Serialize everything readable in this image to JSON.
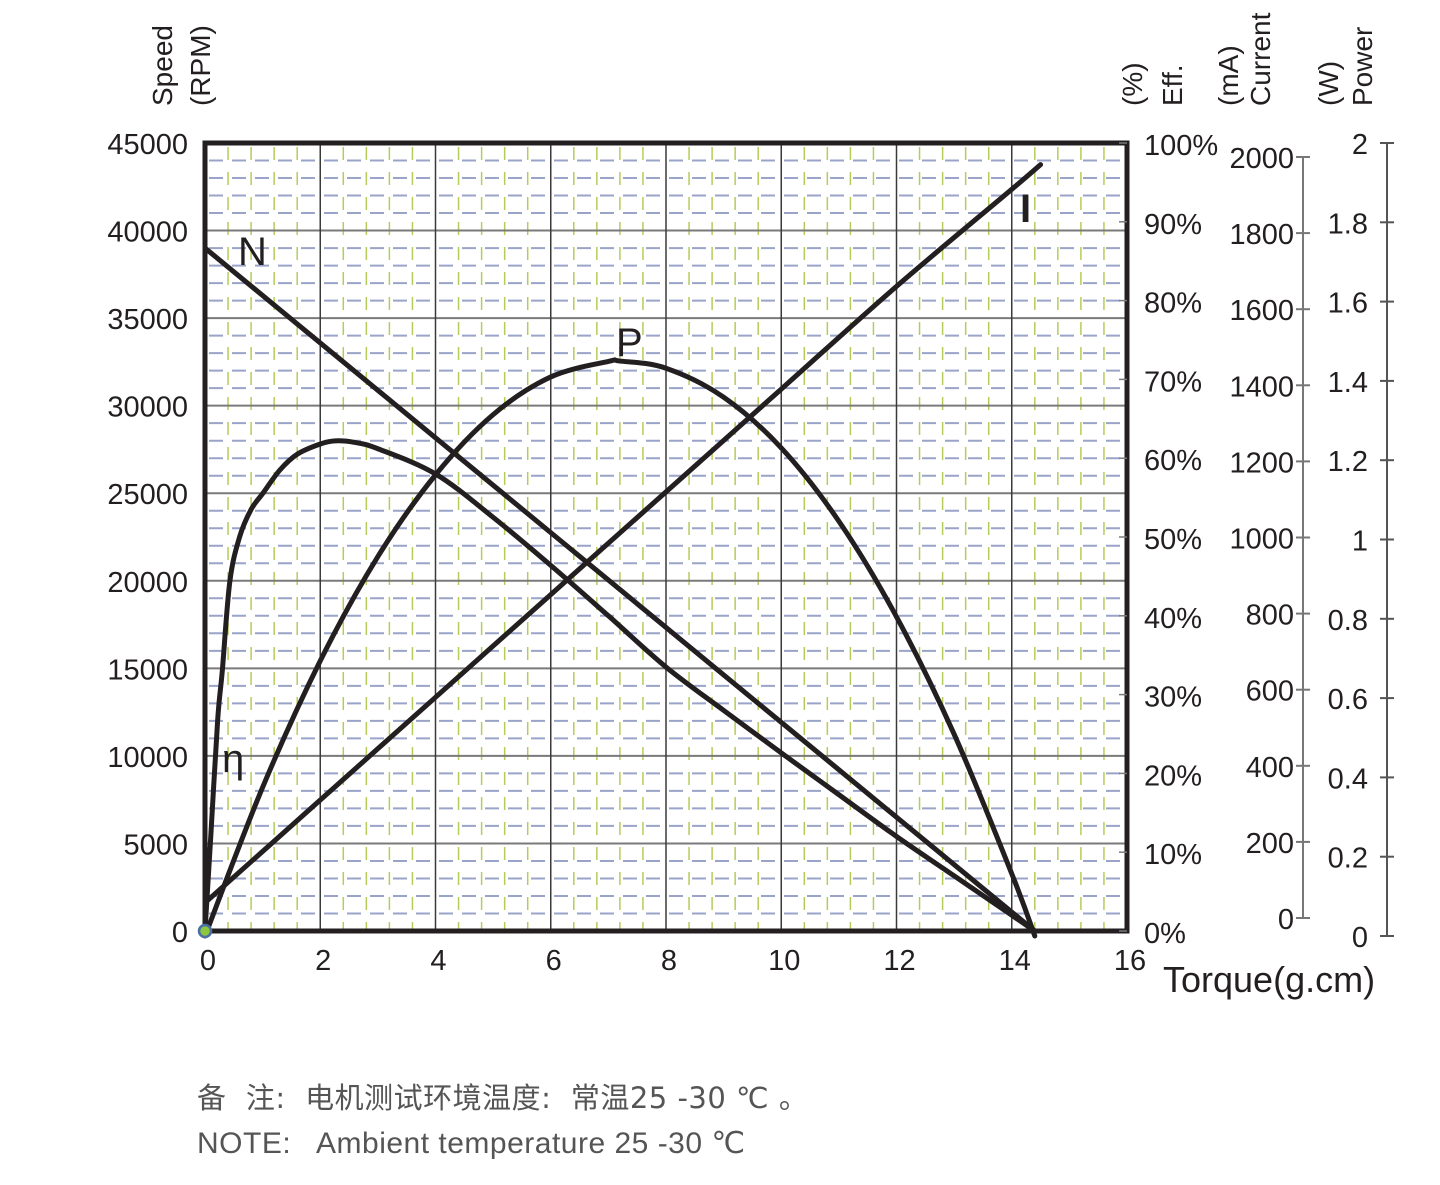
{
  "axes": {
    "speed": {
      "label_line1": "Speed",
      "label_line2": "(RPM)",
      "ticks": [
        "0",
        "5000",
        "10000",
        "15000",
        "20000",
        "25000",
        "30000",
        "35000",
        "40000",
        "45000"
      ]
    },
    "efficiency": {
      "label_line1": "Eff.",
      "label_line2": "(%)",
      "ticks": [
        "0%",
        "10%",
        "20%",
        "30%",
        "40%",
        "50%",
        "60%",
        "70%",
        "80%",
        "90%",
        "100%"
      ]
    },
    "current": {
      "label_line1": "Current",
      "label_line2": "(mA)",
      "ticks": [
        "0",
        "200",
        "400",
        "600",
        "800",
        "1000",
        "1200",
        "1400",
        "1600",
        "1800",
        "2000"
      ]
    },
    "power": {
      "label_line1": "Power",
      "label_line2": "(W)",
      "ticks": [
        "0",
        "0.2",
        "0.4",
        "0.6",
        "0.8",
        "1",
        "1.2",
        "1.4",
        "1.6",
        "1.8",
        "2"
      ]
    },
    "torque": {
      "label": "Torque(g.cm)",
      "ticks": [
        "0",
        "2",
        "4",
        "6",
        "8",
        "10",
        "12",
        "14",
        "16"
      ]
    }
  },
  "curve_labels": {
    "speed": "N",
    "power": "P",
    "current": "I",
    "efficiency": "η"
  },
  "notes": {
    "chinese": "备  注:  电机测试环境温度:  常温25 -30 ℃ 。",
    "english": "NOTE:   Ambient temperature 25 -30 ℃"
  },
  "colors": {
    "curve": "#231f20",
    "frame": "#231f20",
    "major_grid_h": "#7a7a7a",
    "major_grid_v": "#3a3a3a",
    "minor_grid_h": "#9aa3c8",
    "minor_grid_v": "#b6cc5a",
    "origin_dot_fill": "#8dc63f",
    "origin_dot_stroke": "#4a6fa5"
  },
  "chart_data": {
    "type": "line",
    "title": "",
    "xlabel": "Torque(g.cm)",
    "xlim": [
      0,
      16
    ],
    "x_ticks": [
      0,
      2,
      4,
      6,
      8,
      10,
      12,
      14,
      16
    ],
    "grid": true,
    "y_axes": [
      {
        "name": "Speed",
        "unit": "RPM",
        "side": "left",
        "range": [
          0,
          45000
        ],
        "ticks": [
          0,
          5000,
          10000,
          15000,
          20000,
          25000,
          30000,
          35000,
          40000,
          45000
        ]
      },
      {
        "name": "Eff.",
        "unit": "%",
        "side": "right",
        "range": [
          0,
          100
        ],
        "ticks": [
          0,
          10,
          20,
          30,
          40,
          50,
          60,
          70,
          80,
          90,
          100
        ]
      },
      {
        "name": "Current",
        "unit": "mA",
        "side": "right",
        "range": [
          0,
          2000
        ],
        "ticks": [
          0,
          200,
          400,
          600,
          800,
          1000,
          1200,
          1400,
          1600,
          1800,
          2000
        ]
      },
      {
        "name": "Power",
        "unit": "W",
        "side": "right",
        "range": [
          0,
          2
        ],
        "ticks": [
          0,
          0.2,
          0.4,
          0.6,
          0.8,
          1,
          1.2,
          1.4,
          1.6,
          1.8,
          2
        ]
      }
    ],
    "series": [
      {
        "name": "N",
        "description": "Speed (RPM)",
        "axis": "Speed",
        "x": [
          0,
          2,
          4,
          6,
          8,
          10,
          12,
          14,
          14.4
        ],
        "values": [
          39000,
          33583,
          28167,
          22750,
          17333,
          11917,
          6500,
          1083,
          0
        ]
      },
      {
        "name": "I",
        "description": "Current (mA)",
        "axis": "Current",
        "x": [
          0,
          2,
          4,
          6,
          8,
          10,
          12,
          14,
          14.5
        ],
        "values": [
          40,
          310,
          580,
          850,
          1120,
          1390,
          1660,
          1915,
          1980
        ]
      },
      {
        "name": "P",
        "description": "Output Power (W)",
        "axis": "Power",
        "x": [
          0,
          1,
          2,
          3,
          4,
          5,
          6,
          7,
          7.2,
          8,
          9,
          10,
          11,
          12,
          13,
          14,
          14.4
        ],
        "values": [
          0,
          0.375,
          0.694,
          0.957,
          1.163,
          1.315,
          1.41,
          1.449,
          1.45,
          1.432,
          1.359,
          1.231,
          1.046,
          0.805,
          0.509,
          0.157,
          0
        ]
      },
      {
        "name": "η",
        "description": "Efficiency (%)",
        "axis": "Eff.",
        "x": [
          0,
          0.1,
          0.22,
          0.3,
          0.43,
          0.6,
          0.8,
          1.0,
          1.3,
          1.6,
          2.0,
          2.26,
          2.6,
          3.0,
          4.0,
          5.0,
          6.0,
          7.0,
          8.0,
          9.0,
          10.0,
          11.0,
          12.0,
          13.0,
          14.0,
          14.4
        ],
        "values": [
          0,
          12,
          26.8,
          33,
          44.3,
          50,
          53.5,
          55.5,
          58.5,
          60.5,
          61.8,
          62.2,
          62.0,
          61.2,
          58.0,
          52.5,
          46.4,
          40.0,
          33.5,
          28.0,
          22.6,
          17.3,
          12.0,
          7.0,
          2.0,
          0
        ]
      }
    ],
    "annotations": [
      {
        "text": "N",
        "x": 0.8,
        "y_speed": 38300
      },
      {
        "text": "P",
        "x": 7.3,
        "y_speed": 33100
      },
      {
        "text": "I",
        "x": 14.3,
        "y_speed": 41400
      },
      {
        "text": "η",
        "x": 0.5,
        "y_speed": 9800
      }
    ],
    "notes": [
      "备  注:  电机测试环境温度:  常温25 -30 ℃ 。",
      "NOTE:   Ambient temperature 25 -30 ℃"
    ]
  }
}
